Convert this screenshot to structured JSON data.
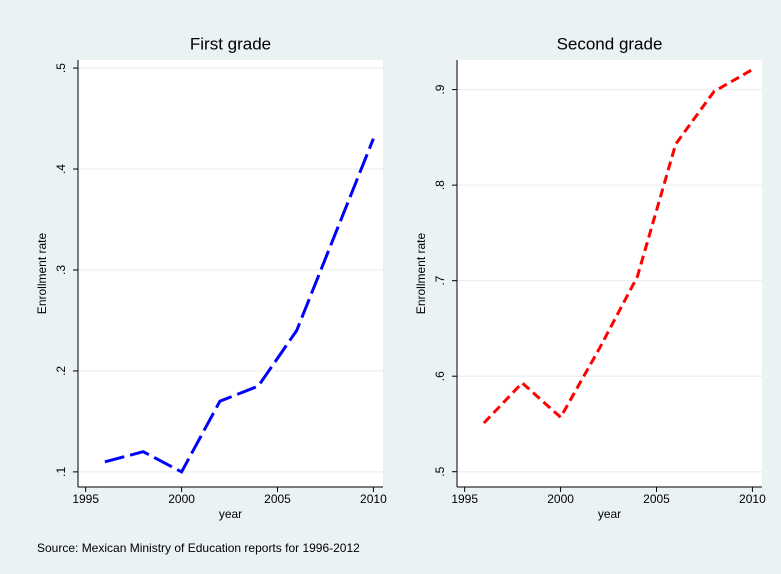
{
  "chart_data": [
    {
      "type": "line",
      "title": "First grade",
      "x_label": "year",
      "y_label": "Enrollment rate",
      "x": [
        1996,
        1998,
        2000,
        2002,
        2004,
        2006,
        2008,
        2010
      ],
      "series": [
        {
          "color": "#0000ff",
          "line_style": "long-dash",
          "values": [
            0.11,
            0.12,
            0.1,
            0.17,
            0.185,
            0.24,
            0.335,
            0.43
          ]
        }
      ],
      "xlim": [
        1994.6,
        2010.5
      ],
      "xticks": [
        1995,
        2000,
        2005,
        2010
      ],
      "ylim": [
        0.085,
        0.508
      ],
      "yticks": [
        {
          "value": 0.1,
          "label": ".1"
        },
        {
          "value": 0.2,
          "label": ".2"
        },
        {
          "value": 0.3,
          "label": ".3"
        },
        {
          "value": 0.4,
          "label": ".4"
        },
        {
          "value": 0.5,
          "label": ".5"
        }
      ],
      "grid": true
    },
    {
      "type": "line",
      "title": "Second grade",
      "x_label": "year",
      "y_label": "Enrollment rate",
      "x": [
        1996,
        1998,
        2000,
        2002,
        2004,
        2006,
        2008,
        2010
      ],
      "series": [
        {
          "color": "#ff0000",
          "line_style": "dash",
          "values": [
            0.551,
            0.593,
            0.557,
            0.628,
            0.704,
            0.843,
            0.898,
            0.921
          ]
        }
      ],
      "xlim": [
        1994.6,
        2010.5
      ],
      "xticks": [
        1995,
        2000,
        2005,
        2010
      ],
      "ylim": [
        0.484,
        0.931
      ],
      "yticks": [
        {
          "value": 0.5,
          "label": ".5"
        },
        {
          "value": 0.6,
          "label": ".6"
        },
        {
          "value": 0.7,
          "label": ".7"
        },
        {
          "value": 0.8,
          "label": ".8"
        },
        {
          "value": 0.9,
          "label": ".9"
        }
      ],
      "grid": true
    }
  ],
  "note": "Source: Mexican Ministry of Education reports for 1996-2012"
}
